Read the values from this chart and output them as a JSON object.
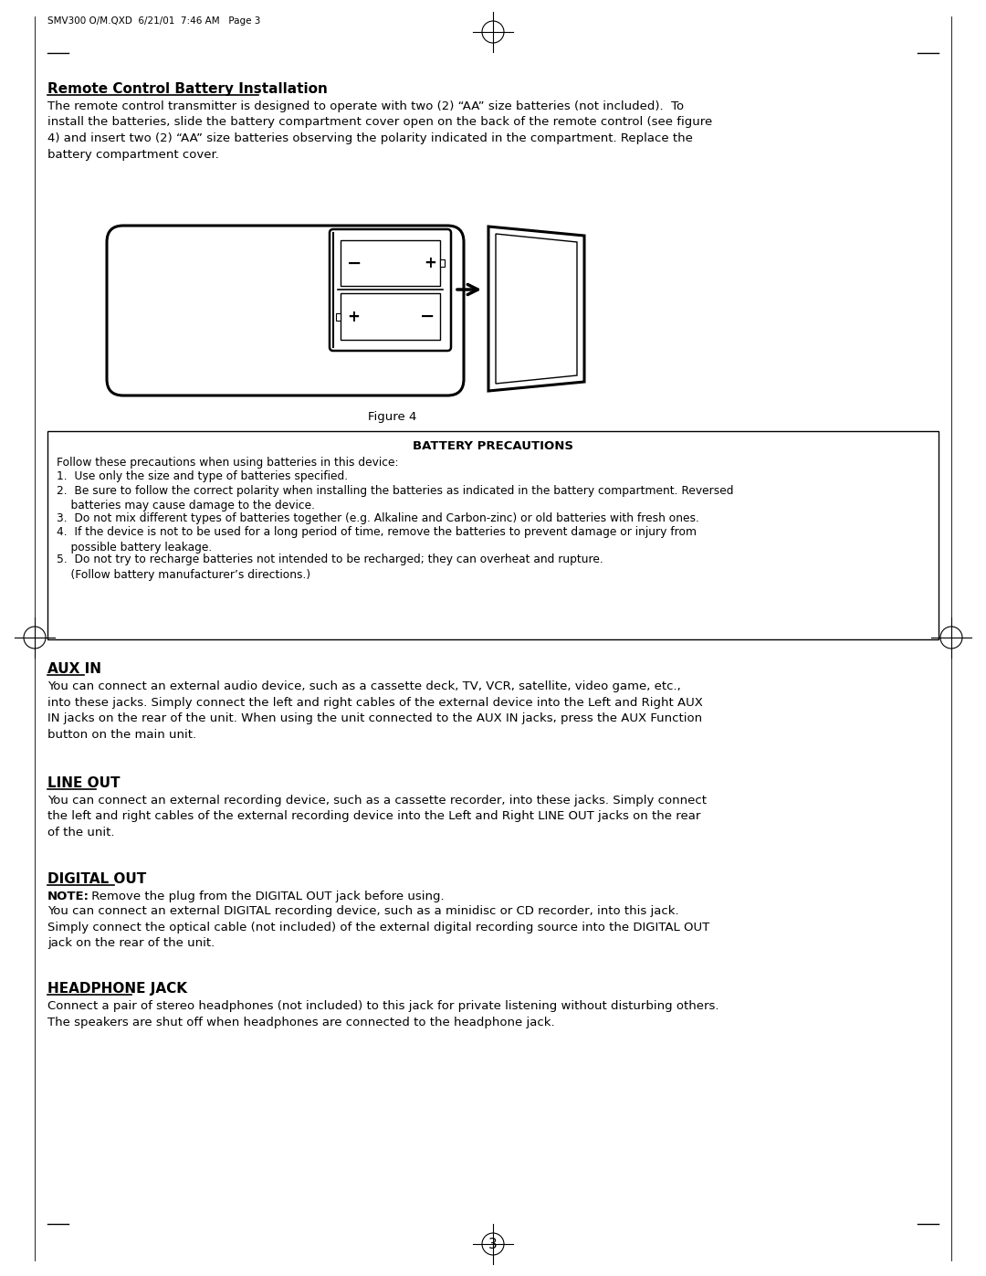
{
  "page_header": "SMV300 O/M.QXD  6/21/01  7:46 AM   Page 3",
  "bg_color": "#ffffff",
  "text_color": "#000000",
  "section1_title": "Remote Control Battery Installation",
  "section1_body": "The remote control transmitter is designed to operate with two (2) “AA” size batteries (not included).  To\ninstall the batteries, slide the battery compartment cover open on the back of the remote control (see figure\n4) and insert two (2) “AA” size batteries observing the polarity indicated in the compartment. Replace the\nbattery compartment cover.",
  "figure_label": "Figure 4",
  "battery_precautions_title": "BATTERY PRECAUTIONS",
  "battery_precautions_intro": "Follow these precautions when using batteries in this device:",
  "battery_precautions_items": [
    "Use only the size and type of batteries specified.",
    "Be sure to follow the correct polarity when installing the batteries as indicated in the battery compartment. Reversed\n    batteries may cause damage to the device.",
    "Do not mix different types of batteries together (e.g. Alkaline and Carbon-zinc) or old batteries with fresh ones.",
    "If the device is not to be used for a long period of time, remove the batteries to prevent damage or injury from\n    possible battery leakage.",
    "Do not try to recharge batteries not intended to be recharged; they can overheat and rupture.\n    (Follow battery manufacturer’s directions.)"
  ],
  "section2_title": "AUX IN",
  "section2_body": "You can connect an external audio device, such as a cassette deck, TV, VCR, satellite, video game, etc.,\ninto these jacks. Simply connect the left and right cables of the external device into the Left and Right AUX\nIN jacks on the rear of the unit. When using the unit connected to the AUX IN jacks, press the AUX Function\nbutton on the main unit.",
  "section3_title": "LINE OUT",
  "section3_body": "You can connect an external recording device, such as a cassette recorder, into these jacks. Simply connect\nthe left and right cables of the external recording device into the Left and Right LINE OUT jacks on the rear\nof the unit.",
  "section4_title": "DIGITAL OUT",
  "section4_note_bold": "NOTE:",
  "section4_note_rest": " Remove the plug from the DIGITAL OUT jack before using.",
  "section4_body": "You can connect an external DIGITAL recording device, such as a minidisc or CD recorder, into this jack.\nSimply connect the optical cable (not included) of the external digital recording source into the DIGITAL OUT\njack on the rear of the unit.",
  "section5_title": "HEADPHONE JACK",
  "section5_body": "Connect a pair of stereo headphones (not included) to this jack for private listening without disturbing others.\nThe speakers are shut off when headphones are connected to the headphone jack.",
  "page_number": "3"
}
